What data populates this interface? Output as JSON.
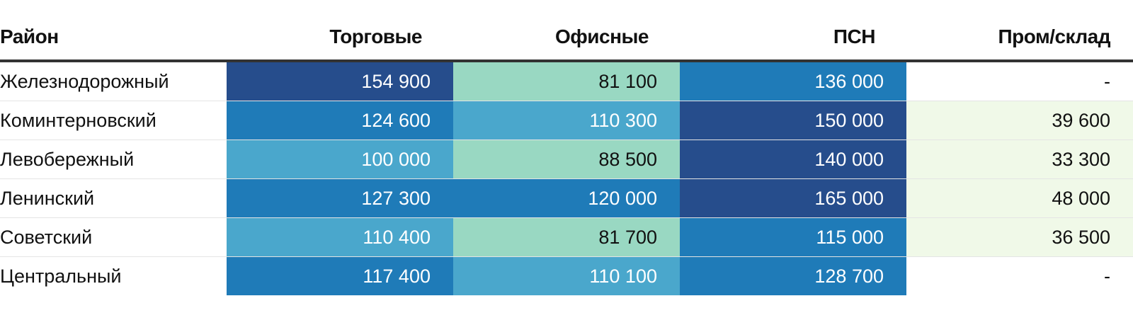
{
  "table": {
    "headers": [
      "Район",
      "Торговые",
      "Офисные",
      "ПСН",
      "Пром/склад"
    ],
    "rows": [
      [
        "Железнодорожный",
        "154 900",
        "81 100",
        "136 000",
        "-"
      ],
      [
        "Коминтерновский",
        "124 600",
        "110 300",
        "150 000",
        "39 600"
      ],
      [
        "Левобережный",
        "100 000",
        "88 500",
        "140 000",
        "33 300"
      ],
      [
        "Ленинский",
        "127 300",
        "120 000",
        "165 000",
        "48 000"
      ],
      [
        "Советский",
        "110 400",
        "81 700",
        "115 000",
        "36 500"
      ],
      [
        "Центральный",
        "117 400",
        "110 100",
        "128 700",
        "-"
      ]
    ]
  },
  "colors": {
    "level_1": "#f0f9e8",
    "level_2": "#99d8c2",
    "level_3": "#4aa7cc",
    "level_4": "#1f7bb8",
    "level_5": "#264d8c",
    "text_dark": "#111111",
    "text_light": "#ffffff"
  },
  "chart_data": {
    "type": "table",
    "columns": [
      "Район",
      "Торговые",
      "Офисные",
      "ПСН",
      "Пром/склад"
    ],
    "categories": [
      "Железнодорожный",
      "Коминтерновский",
      "Левобережный",
      "Ленинский",
      "Советский",
      "Центральный"
    ],
    "series": [
      {
        "name": "Торговые",
        "values": [
          154900,
          124600,
          100000,
          127300,
          110400,
          117400
        ]
      },
      {
        "name": "Офисные",
        "values": [
          81100,
          110300,
          88500,
          120000,
          81700,
          110100
        ]
      },
      {
        "name": "ПСН",
        "values": [
          136000,
          150000,
          140000,
          165000,
          115000,
          128700
        ]
      },
      {
        "name": "Пром/склад",
        "values": [
          null,
          39600,
          33300,
          48000,
          36500,
          null
        ]
      }
    ]
  }
}
